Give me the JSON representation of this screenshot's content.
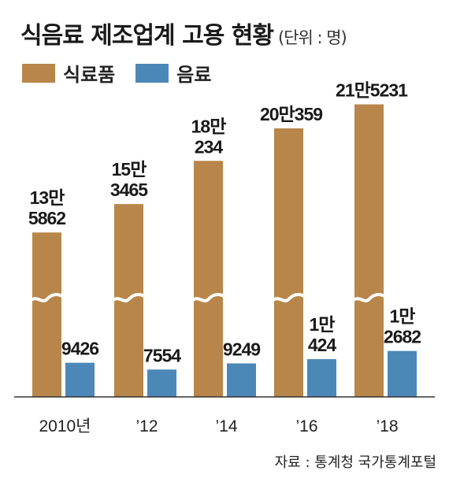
{
  "title": "식음료 제조업계 고용 현황",
  "unit": "(단위 : 명)",
  "source": "자료 : 통계청 국가통계포털",
  "chart_data": {
    "type": "bar",
    "categories": [
      "2010년",
      "’12",
      "’14",
      "’16",
      "’18"
    ],
    "series": [
      {
        "name": "식료품",
        "color": "#b8864a",
        "values": [
          135862,
          153465,
          180234,
          200359,
          215231
        ],
        "labels": [
          [
            "13만",
            "5862"
          ],
          [
            "15만",
            "3465"
          ],
          [
            "18만",
            "234"
          ],
          [
            "20만359"
          ],
          [
            "21만5231"
          ]
        ]
      },
      {
        "name": "음료",
        "color": "#4b88b8",
        "values": [
          9426,
          7554,
          9249,
          10424,
          12682
        ],
        "labels": [
          [
            "9426"
          ],
          [
            "7554"
          ],
          [
            "9249"
          ],
          [
            "1만",
            "424"
          ],
          [
            "1만",
            "2682"
          ]
        ]
      }
    ],
    "axis_break": true,
    "gridlines": false,
    "legend_position": "top-left"
  }
}
